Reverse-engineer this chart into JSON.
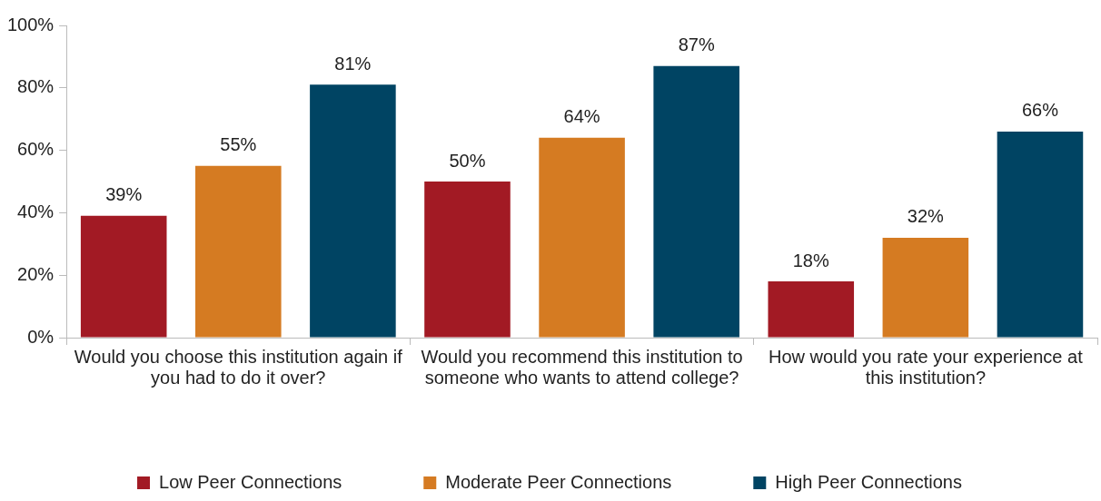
{
  "chart_data": {
    "type": "bar",
    "categories": [
      "Would you choose this institution again if you had to do it over?",
      "Would you recommend this institution to someone who wants to attend college?",
      "How would you rate your experience at this institution?"
    ],
    "series": [
      {
        "name": "Low Peer Connections",
        "color": "#a21a24",
        "values": [
          39,
          50,
          18
        ],
        "value_labels": [
          "39%",
          "50%",
          "18%"
        ]
      },
      {
        "name": "Moderate Peer Connections",
        "color": "#d57b22",
        "values": [
          55,
          64,
          32
        ],
        "value_labels": [
          "55%",
          "64%",
          "32%"
        ]
      },
      {
        "name": "High Peer Connections",
        "color": "#004463",
        "values": [
          81,
          87,
          66
        ],
        "value_labels": [
          "81%",
          "87%",
          "66%"
        ]
      }
    ],
    "ylim": [
      0,
      100
    ],
    "yticks": [
      {
        "value": 0,
        "label": "0%"
      },
      {
        "value": 20,
        "label": "20%"
      },
      {
        "value": 40,
        "label": "40%"
      },
      {
        "value": 60,
        "label": "60%"
      },
      {
        "value": 80,
        "label": "80%"
      },
      {
        "value": 100,
        "label": "100%"
      }
    ],
    "grid": false,
    "legend": "bottom"
  }
}
